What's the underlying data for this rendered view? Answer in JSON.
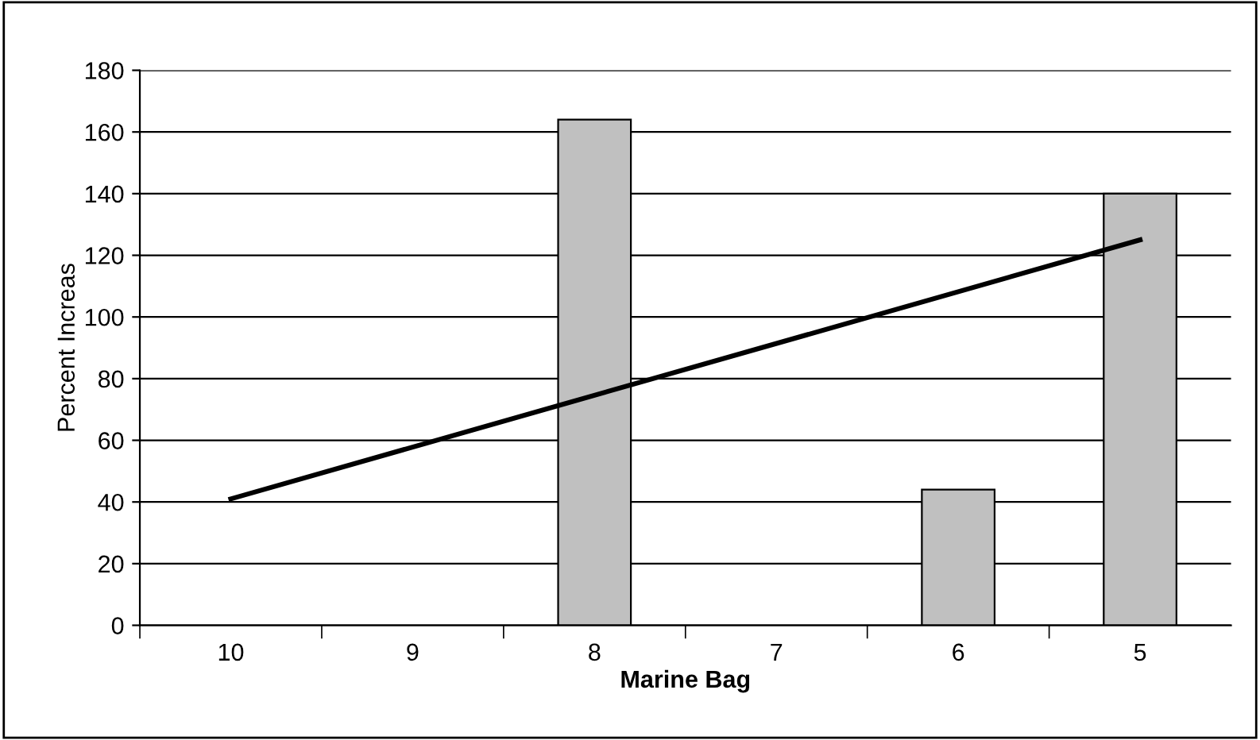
{
  "chart_data": {
    "type": "bar",
    "xlabel": "Marine Bag",
    "ylabel": "Percent Increas",
    "categories": [
      "10",
      "9",
      "8",
      "7",
      "6",
      "5"
    ],
    "series": [
      {
        "color": "#c0c0c0",
        "values": [
          null,
          null,
          164,
          null,
          44,
          140
        ]
      },
      {
        "type": "line",
        "color": "#000000",
        "values": [
          41,
          null,
          null,
          null,
          null,
          125
        ]
      }
    ],
    "ylim": [
      0,
      180
    ],
    "yticks": [
      0,
      20,
      40,
      60,
      80,
      100,
      120,
      140,
      160,
      180
    ],
    "grid": "y"
  }
}
